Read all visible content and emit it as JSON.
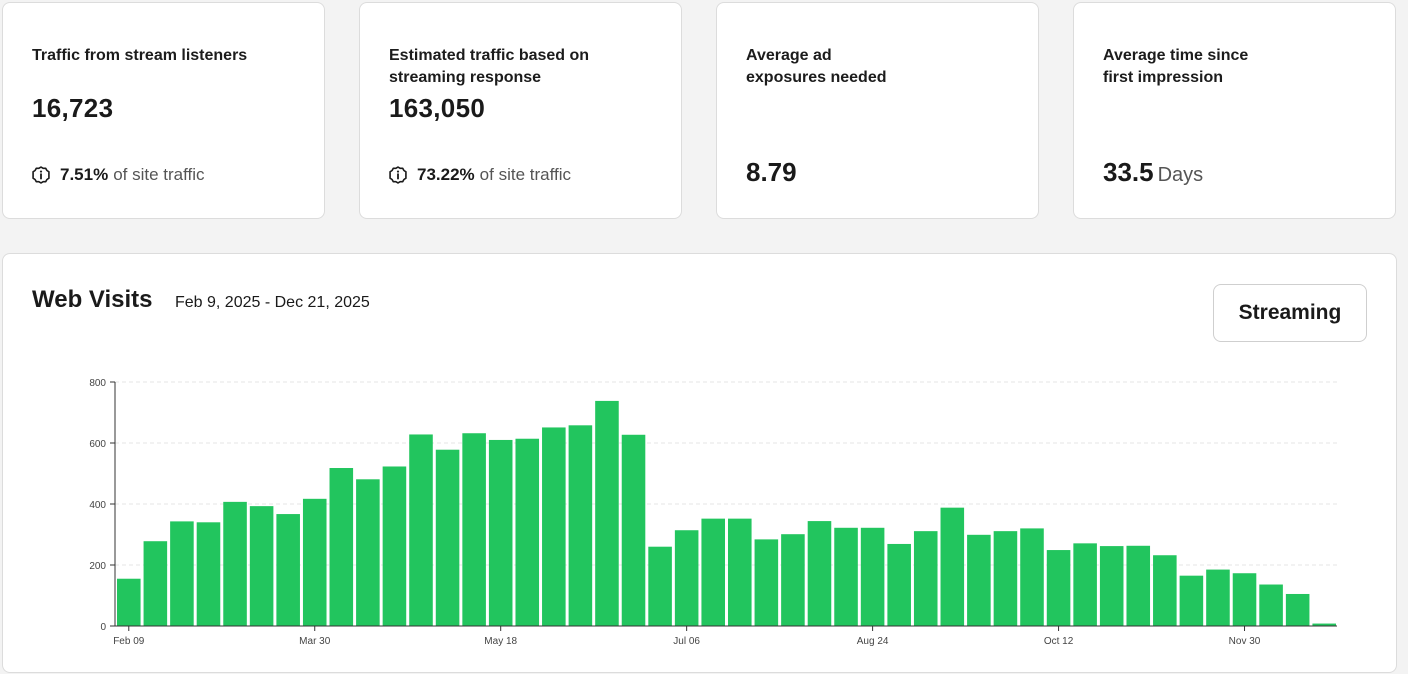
{
  "kpis": [
    {
      "title": "Traffic from stream listeners",
      "value": "16,723",
      "note_value": "7.51%",
      "note_text": "of site traffic"
    },
    {
      "title": "Estimated traffic based on streaming response",
      "value": "163,050",
      "note_value": "73.22%",
      "note_text": "of site traffic"
    },
    {
      "title": "Average ad exposures needed",
      "value": "8.79"
    },
    {
      "title": "Average time since first impression",
      "value": "33.5",
      "unit": "Days"
    }
  ],
  "chart_section": {
    "title": "Web Visits",
    "date_range": "Feb 9, 2025 - Dec 21, 2025",
    "streaming_button": "Streaming"
  },
  "colors": {
    "bar": "#22c55e",
    "grid": "#e4e4e4",
    "axis": "#333333"
  },
  "chart_data": {
    "type": "bar",
    "title": "",
    "xlabel": "",
    "ylabel": "",
    "ylim": [
      0,
      800
    ],
    "yticks": [
      0,
      200,
      400,
      600,
      800
    ],
    "grid": true,
    "x_tick_labels": [
      {
        "index": 0,
        "label": "Feb 09"
      },
      {
        "index": 7,
        "label": "Mar 30"
      },
      {
        "index": 14,
        "label": "May 18"
      },
      {
        "index": 21,
        "label": "Jul 06"
      },
      {
        "index": 28,
        "label": "Aug 24"
      },
      {
        "index": 35,
        "label": "Oct 12"
      },
      {
        "index": 42,
        "label": "Nov 30"
      }
    ],
    "values": [
      155,
      278,
      343,
      340,
      407,
      393,
      367,
      417,
      518,
      481,
      523,
      628,
      578,
      632,
      610,
      614,
      651,
      658,
      738,
      627,
      260,
      314,
      352,
      352,
      284,
      301,
      344,
      322,
      322,
      269,
      311,
      388,
      299,
      311,
      320,
      249,
      271,
      262,
      263,
      232,
      165,
      185,
      173,
      136,
      105,
      8
    ]
  }
}
